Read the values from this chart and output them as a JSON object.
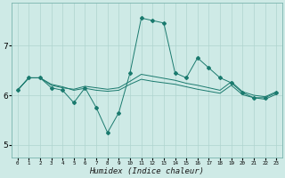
{
  "xlabel": "Humidex (Indice chaleur)",
  "bg_color": "#ceeae6",
  "grid_color": "#afd4cf",
  "line_color": "#1a7a6e",
  "x_ticks": [
    0,
    1,
    2,
    3,
    4,
    5,
    6,
    7,
    8,
    9,
    10,
    11,
    12,
    13,
    14,
    15,
    16,
    17,
    18,
    19,
    20,
    21,
    22,
    23
  ],
  "ylim": [
    4.75,
    7.85
  ],
  "yticks": [
    5,
    6,
    7
  ],
  "series_main": [
    6.1,
    6.35,
    6.35,
    6.15,
    6.1,
    5.85,
    6.15,
    5.75,
    5.25,
    5.65,
    6.45,
    7.55,
    7.5,
    7.45,
    6.45,
    6.35,
    6.75,
    6.55,
    6.35,
    6.25,
    6.05,
    5.95,
    5.95,
    6.05
  ],
  "series_upper": [
    6.1,
    6.35,
    6.35,
    6.2,
    6.15,
    6.12,
    6.18,
    6.15,
    6.12,
    6.15,
    6.28,
    6.42,
    6.38,
    6.34,
    6.3,
    6.24,
    6.2,
    6.15,
    6.1,
    6.27,
    6.07,
    6.0,
    5.97,
    6.07
  ],
  "series_lower": [
    6.1,
    6.35,
    6.35,
    6.22,
    6.17,
    6.1,
    6.14,
    6.1,
    6.08,
    6.1,
    6.22,
    6.32,
    6.28,
    6.25,
    6.22,
    6.17,
    6.12,
    6.08,
    6.04,
    6.2,
    6.01,
    5.95,
    5.92,
    6.02
  ]
}
